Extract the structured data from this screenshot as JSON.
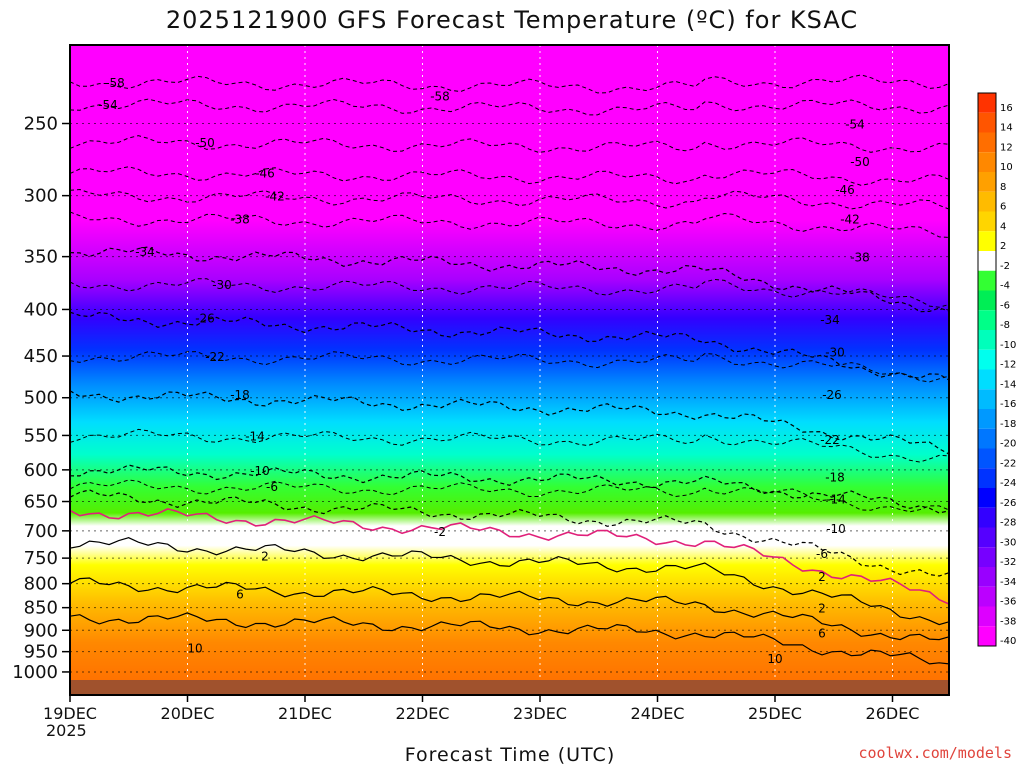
{
  "title": "2025121900 GFS Forecast Temperature (ºC) for KSAC",
  "credit": "coolwx.com/models",
  "chart_data": {
    "type": "heatmap",
    "title": "2025121900 GFS Forecast Temperature (ºC) for KSAC",
    "xlabel": "Forecast Time (UTC)",
    "ylabel": "",
    "x_ticks": [
      "19DEC",
      "20DEC",
      "21DEC",
      "22DEC",
      "23DEC",
      "24DEC",
      "25DEC",
      "26DEC"
    ],
    "x_year": "2025",
    "y_ticks": [
      250,
      300,
      350,
      400,
      450,
      500,
      550,
      600,
      650,
      700,
      750,
      800,
      850,
      900,
      950,
      1000
    ],
    "y_axis": "pressure (hPa), inverted, log scale",
    "colorbar": {
      "labels": [
        16,
        14,
        12,
        10,
        8,
        6,
        4,
        2,
        -2,
        -4,
        -6,
        -8,
        -10,
        -12,
        -14,
        -16,
        -18,
        -20,
        -22,
        -24,
        -26,
        -28,
        -30,
        -32,
        -34,
        -36,
        -38,
        -40
      ],
      "colors": [
        "#ff3300",
        "#ff5500",
        "#ff6e00",
        "#ff8800",
        "#ffa000",
        "#ffbb00",
        "#ffd500",
        "#ffff00",
        "#ffffff",
        "#33ff33",
        "#00ee55",
        "#00ff88",
        "#00ffbb",
        "#00ffee",
        "#00ddff",
        "#00bbff",
        "#0099ff",
        "#0077ff",
        "#0055ff",
        "#0033ff",
        "#0000ff",
        "#3300ff",
        "#5500ff",
        "#7700ff",
        "#9900ff",
        "#bb00ff",
        "#dd00ff",
        "#ff00ff"
      ]
    },
    "contour_labels": {
      "negative": [
        "-58",
        "-54",
        "-50",
        "-46",
        "-42",
        "-38",
        "-34",
        "-30",
        "-26",
        "-22",
        "-18",
        "-14",
        "-10",
        "-6",
        "-2"
      ],
      "positive": [
        "2",
        "6",
        "10"
      ]
    },
    "isotherms_at_19DEC": {
      "-34": 345,
      "-26": 408,
      "-18": 495,
      "-10": 600,
      "-2": 640,
      "0": 665,
      "2": 720,
      "6": 800,
      "10": 870
    },
    "isotherms_at_26DEC": {
      "-34": 400,
      "-26": 480,
      "-18": 570,
      "-10": 660,
      "-2": 790,
      "0": 830,
      "2": 880,
      "6": 930,
      "10": 980
    },
    "grid": true
  }
}
